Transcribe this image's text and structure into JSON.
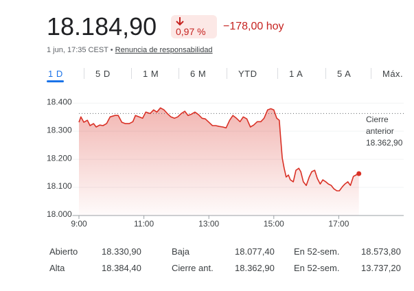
{
  "header": {
    "price": "18.184,90",
    "change_pct": "0,97 %",
    "change": "−178,00 hoy",
    "timestamp": "1 jun, 17:35 CEST",
    "separator": "•",
    "disclaimer": "Renuncia de responsabilidad"
  },
  "tabs": [
    "1 D",
    "5 D",
    "1 M",
    "6 M",
    "YTD",
    "1 A",
    "5 A",
    "Máx."
  ],
  "chart_data": {
    "type": "line",
    "color": "#d93025",
    "area": true,
    "grid": true,
    "x": [
      9.0,
      9.06,
      9.15,
      9.26,
      9.34,
      9.45,
      9.53,
      9.64,
      9.74,
      9.85,
      9.96,
      10.11,
      10.21,
      10.32,
      10.43,
      10.55,
      10.66,
      10.74,
      10.85,
      10.96,
      11.06,
      11.19,
      11.3,
      11.4,
      11.51,
      11.62,
      11.72,
      11.83,
      11.94,
      12.04,
      12.15,
      12.26,
      12.36,
      12.47,
      12.57,
      12.68,
      12.79,
      12.89,
      13.0,
      13.11,
      13.21,
      13.32,
      13.43,
      13.53,
      13.64,
      13.74,
      13.85,
      13.96,
      14.06,
      14.17,
      14.28,
      14.38,
      14.49,
      14.6,
      14.7,
      14.81,
      14.91,
      15.0,
      15.09,
      15.17,
      15.21,
      15.26,
      15.32,
      15.38,
      15.45,
      15.51,
      15.6,
      15.68,
      15.77,
      15.83,
      15.91,
      16.0,
      16.09,
      16.17,
      16.26,
      16.34,
      16.43,
      16.51,
      16.6,
      16.68,
      16.77,
      16.85,
      16.94,
      17.02,
      17.11,
      17.19,
      17.28,
      17.36,
      17.45,
      17.53,
      17.62
    ],
    "values": [
      18332,
      18351,
      18332,
      18339,
      18320,
      18327,
      18315,
      18322,
      18320,
      18327,
      18351,
      18356,
      18356,
      18332,
      18327,
      18327,
      18334,
      18356,
      18351,
      18346,
      18368,
      18363,
      18376,
      18368,
      18383,
      18376,
      18363,
      18351,
      18346,
      18351,
      18363,
      18371,
      18356,
      18361,
      18368,
      18359,
      18346,
      18344,
      18332,
      18320,
      18320,
      18317,
      18315,
      18312,
      18339,
      18356,
      18346,
      18334,
      18351,
      18344,
      18315,
      18322,
      18334,
      18334,
      18346,
      18376,
      18380,
      18376,
      18346,
      18339,
      18278,
      18205,
      18168,
      18137,
      18144,
      18127,
      18120,
      18161,
      18168,
      18156,
      18120,
      18107,
      18137,
      18156,
      18161,
      18132,
      18112,
      18127,
      18120,
      18112,
      18107,
      18095,
      18088,
      18088,
      18102,
      18112,
      18120,
      18107,
      18139,
      18144,
      18149
    ],
    "xlim": [
      9,
      19
    ],
    "xticks": [
      {
        "value": 9,
        "label": "9:00"
      },
      {
        "value": 11,
        "label": "11:00"
      },
      {
        "value": 13,
        "label": "13:00"
      },
      {
        "value": 15,
        "label": "15:00"
      },
      {
        "value": 17,
        "label": "17:00"
      }
    ],
    "ylim": [
      18000,
      18425
    ],
    "yticks": [
      {
        "value": 18000,
        "label": "18.000"
      },
      {
        "value": 18100,
        "label": "18.100"
      },
      {
        "value": 18200,
        "label": "18.200"
      },
      {
        "value": 18300,
        "label": "18.300"
      },
      {
        "value": 18400,
        "label": "18.400"
      }
    ],
    "reference_line": {
      "label": "Cierre anterior",
      "value": 18362.9,
      "value_label": "18.362,90"
    }
  },
  "stats": {
    "rows": [
      [
        "Abierto",
        "18.330,90",
        "Baja",
        "18.077,40",
        "En 52-sem.",
        "18.573,80"
      ],
      [
        "Alta",
        "18.384,40",
        "Cierre ant.",
        "18.362,90",
        "En 52-sem.",
        "13.737,20"
      ]
    ]
  }
}
